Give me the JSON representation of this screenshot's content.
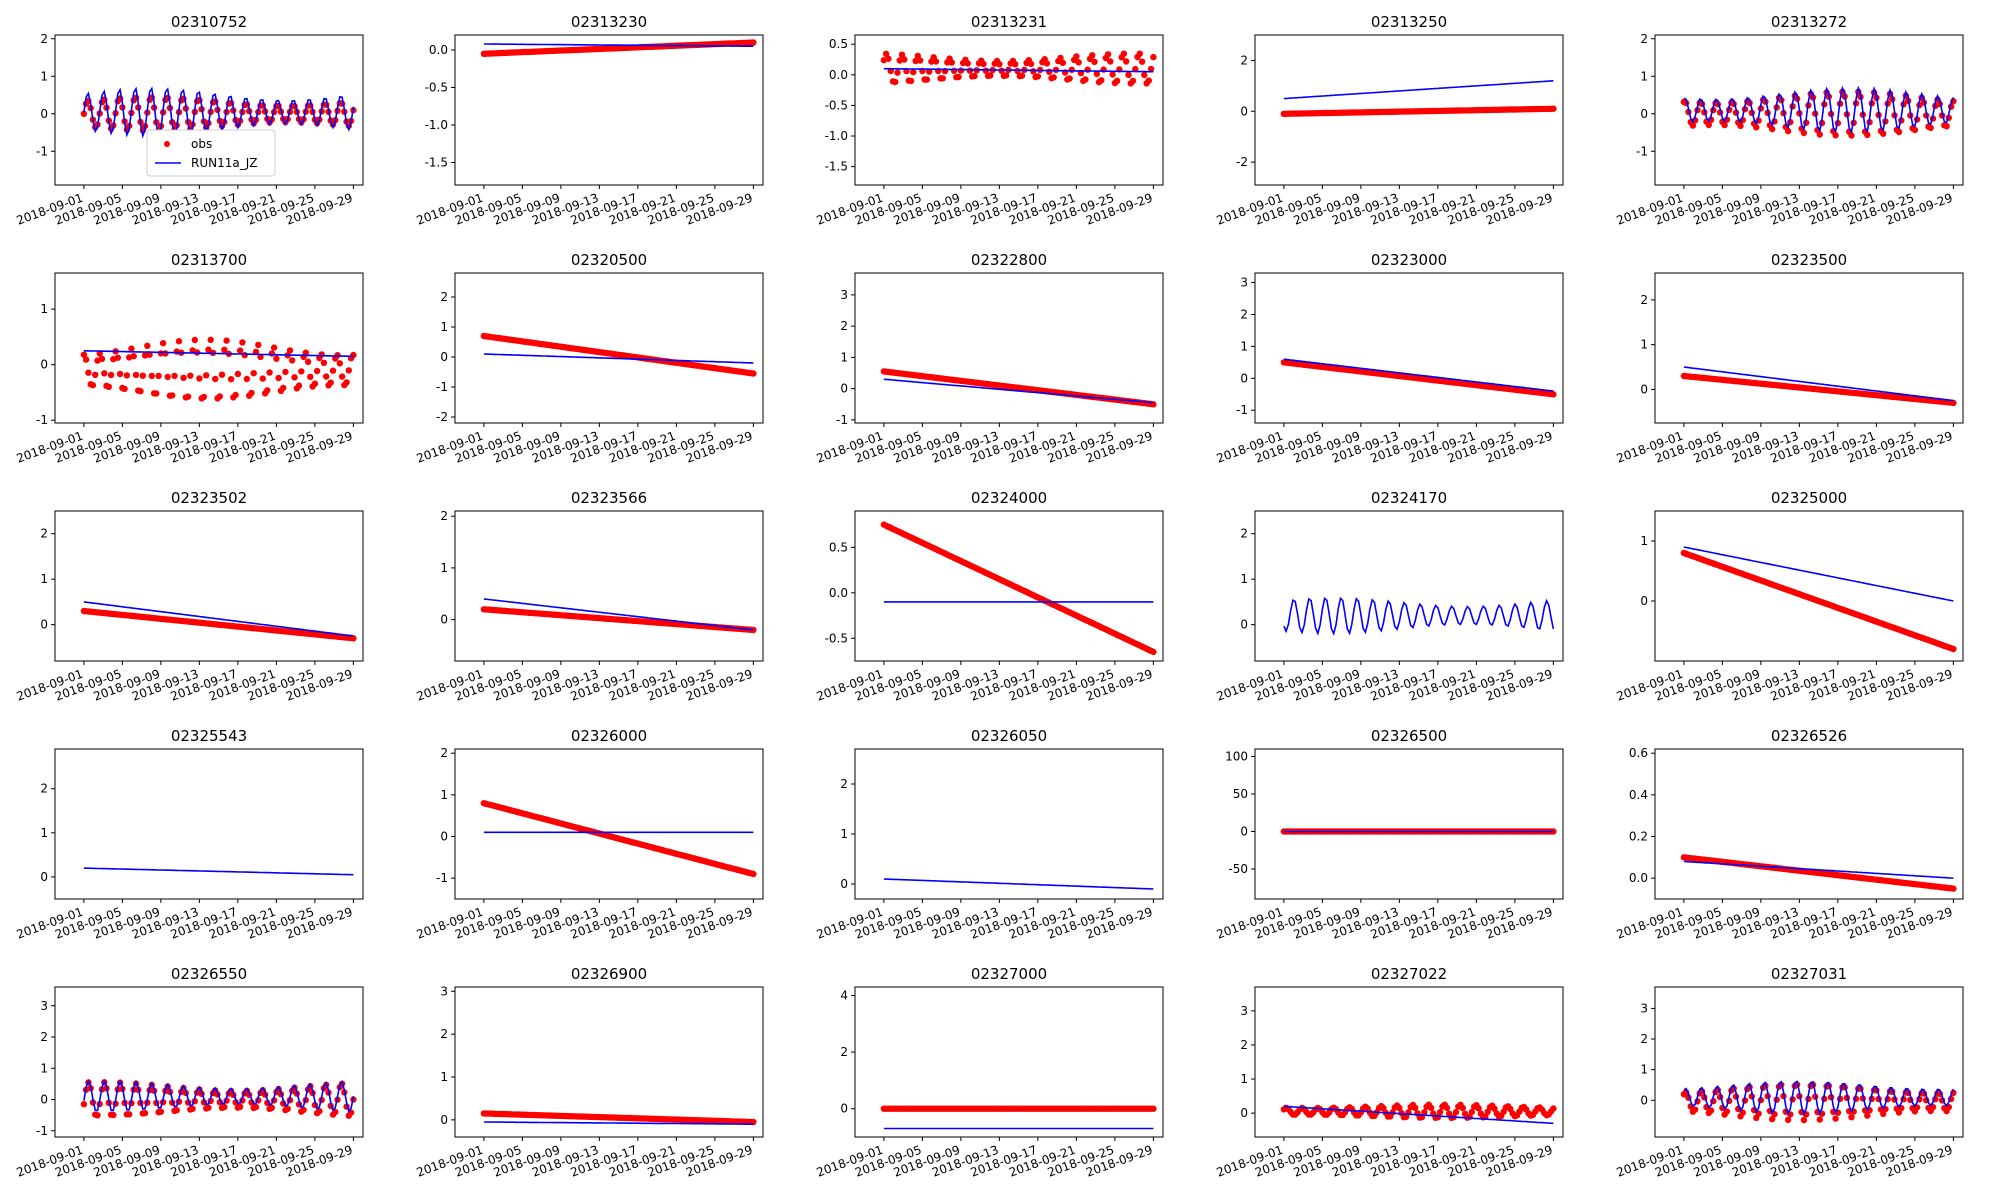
{
  "colors": {
    "obs": "#ff0000",
    "model": "#0000ff",
    "axis": "#000000"
  },
  "legend": {
    "obs_label": "obs",
    "model_label": "RUN11a_JZ"
  },
  "chart_data": [
    {
      "type": "line",
      "title": "02310752",
      "x": [
        "2018-09-01",
        "2018-09-05",
        "2018-09-09",
        "2018-09-13",
        "2018-09-17",
        "2018-09-21",
        "2018-09-25",
        "2018-09-29"
      ],
      "xlim": [
        "2018-08-29",
        "2018-09-30"
      ],
      "ylim": [
        -1.9,
        2.1
      ],
      "yticks": [
        -1,
        0,
        1,
        2
      ],
      "series": [
        {
          "name": "obs",
          "style": "oscillating",
          "base": 0.0,
          "amp": 0.45
        },
        {
          "name": "RUN11a_JZ",
          "style": "oscillating",
          "base": 0.05,
          "amp": 0.65
        }
      ],
      "legend": "lower-left"
    },
    {
      "type": "line",
      "title": "02313230",
      "x": [
        "2018-09-01",
        "2018-09-05",
        "2018-09-09",
        "2018-09-13",
        "2018-09-17",
        "2018-09-21",
        "2018-09-25",
        "2018-09-29"
      ],
      "xlim": [
        "2018-08-29",
        "2018-09-30"
      ],
      "ylim": [
        -1.8,
        0.2
      ],
      "yticks": [
        -1.5,
        -1.0,
        -0.5,
        0.0
      ],
      "series": [
        {
          "name": "obs",
          "style": "trend",
          "start": -0.05,
          "end": 0.1
        },
        {
          "name": "RUN11a_JZ",
          "style": "trend",
          "start": 0.08,
          "end": 0.05
        }
      ]
    },
    {
      "type": "line",
      "title": "02313231",
      "x": [
        "2018-09-01",
        "2018-09-05",
        "2018-09-09",
        "2018-09-13",
        "2018-09-17",
        "2018-09-21",
        "2018-09-25",
        "2018-09-29"
      ],
      "xlim": [
        "2018-08-29",
        "2018-09-30"
      ],
      "ylim": [
        -1.8,
        0.65
      ],
      "yticks": [
        -1.5,
        -1.0,
        -0.5,
        0.0,
        0.5
      ],
      "series": [
        {
          "name": "obs",
          "style": "oscillating",
          "base": 0.1,
          "amp": 0.25
        },
        {
          "name": "RUN11a_JZ",
          "style": "trend",
          "start": 0.1,
          "end": 0.05
        }
      ]
    },
    {
      "type": "line",
      "title": "02313250",
      "x": [
        "2018-09-01",
        "2018-09-05",
        "2018-09-09",
        "2018-09-13",
        "2018-09-17",
        "2018-09-21",
        "2018-09-25",
        "2018-09-29"
      ],
      "xlim": [
        "2018-08-29",
        "2018-09-30"
      ],
      "ylim": [
        -2.9,
        3.0
      ],
      "yticks": [
        -2,
        0,
        2
      ],
      "series": [
        {
          "name": "obs",
          "style": "trend",
          "start": -0.1,
          "end": 0.1
        },
        {
          "name": "RUN11a_JZ",
          "style": "trend",
          "start": 0.5,
          "end": 1.2
        }
      ]
    },
    {
      "type": "line",
      "title": "02313272",
      "x": [
        "2018-09-01",
        "2018-09-05",
        "2018-09-09",
        "2018-09-13",
        "2018-09-17",
        "2018-09-21",
        "2018-09-25",
        "2018-09-29"
      ],
      "xlim": [
        "2018-08-29",
        "2018-09-30"
      ],
      "ylim": [
        -1.9,
        2.1
      ],
      "yticks": [
        -1,
        0,
        1,
        2
      ],
      "series": [
        {
          "name": "obs",
          "style": "oscillating",
          "base": 0.0,
          "amp": 0.6
        },
        {
          "name": "RUN11a_JZ",
          "style": "oscillating",
          "base": 0.1,
          "amp": 0.6
        }
      ]
    },
    {
      "type": "line",
      "title": "02313700",
      "x": [
        "2018-09-01",
        "2018-09-05",
        "2018-09-09",
        "2018-09-13",
        "2018-09-17",
        "2018-09-21",
        "2018-09-25",
        "2018-09-29"
      ],
      "xlim": [
        "2018-08-29",
        "2018-09-30"
      ],
      "ylim": [
        -1.05,
        1.65
      ],
      "yticks": [
        -1,
        0,
        1
      ],
      "series": [
        {
          "name": "obs",
          "style": "oscillating",
          "base": -0.1,
          "amp": 0.55
        },
        {
          "name": "RUN11a_JZ",
          "style": "trend",
          "start": 0.25,
          "end": 0.15
        }
      ]
    },
    {
      "type": "line",
      "title": "02320500",
      "x": [
        "2018-09-01",
        "2018-09-05",
        "2018-09-09",
        "2018-09-13",
        "2018-09-17",
        "2018-09-21",
        "2018-09-25",
        "2018-09-29"
      ],
      "xlim": [
        "2018-08-29",
        "2018-09-30"
      ],
      "ylim": [
        -2.2,
        2.8
      ],
      "yticks": [
        -2,
        -1,
        0,
        1,
        2
      ],
      "series": [
        {
          "name": "obs",
          "style": "trend",
          "start": 0.7,
          "end": -0.55
        },
        {
          "name": "RUN11a_JZ",
          "style": "trend",
          "start": 0.1,
          "end": -0.2
        }
      ]
    },
    {
      "type": "line",
      "title": "02322800",
      "x": [
        "2018-09-01",
        "2018-09-05",
        "2018-09-09",
        "2018-09-13",
        "2018-09-17",
        "2018-09-21",
        "2018-09-25",
        "2018-09-29"
      ],
      "xlim": [
        "2018-08-29",
        "2018-09-30"
      ],
      "ylim": [
        -1.1,
        3.7
      ],
      "yticks": [
        -1,
        0,
        1,
        2,
        3
      ],
      "series": [
        {
          "name": "obs",
          "style": "trend",
          "start": 0.55,
          "end": -0.5
        },
        {
          "name": "RUN11a_JZ",
          "style": "trend",
          "start": 0.3,
          "end": -0.45
        }
      ]
    },
    {
      "type": "line",
      "title": "02323000",
      "x": [
        "2018-09-01",
        "2018-09-05",
        "2018-09-09",
        "2018-09-13",
        "2018-09-17",
        "2018-09-21",
        "2018-09-25",
        "2018-09-29"
      ],
      "xlim": [
        "2018-08-29",
        "2018-09-30"
      ],
      "ylim": [
        -1.4,
        3.3
      ],
      "yticks": [
        -1,
        0,
        1,
        2,
        3
      ],
      "series": [
        {
          "name": "obs",
          "style": "trend",
          "start": 0.5,
          "end": -0.5
        },
        {
          "name": "RUN11a_JZ",
          "style": "trend",
          "start": 0.6,
          "end": -0.4
        }
      ]
    },
    {
      "type": "line",
      "title": "02323500",
      "x": [
        "2018-09-01",
        "2018-09-05",
        "2018-09-09",
        "2018-09-13",
        "2018-09-17",
        "2018-09-21",
        "2018-09-25",
        "2018-09-29"
      ],
      "xlim": [
        "2018-08-29",
        "2018-09-30"
      ],
      "ylim": [
        -0.75,
        2.6
      ],
      "yticks": [
        0,
        1,
        2
      ],
      "series": [
        {
          "name": "obs",
          "style": "trend",
          "start": 0.3,
          "end": -0.3
        },
        {
          "name": "RUN11a_JZ",
          "style": "trend",
          "start": 0.5,
          "end": -0.25
        }
      ]
    },
    {
      "type": "line",
      "title": "02323502",
      "x": [
        "2018-09-01",
        "2018-09-05",
        "2018-09-09",
        "2018-09-13",
        "2018-09-17",
        "2018-09-21",
        "2018-09-25",
        "2018-09-29"
      ],
      "xlim": [
        "2018-08-29",
        "2018-09-30"
      ],
      "ylim": [
        -0.8,
        2.5
      ],
      "yticks": [
        0,
        1,
        2
      ],
      "series": [
        {
          "name": "obs",
          "style": "trend",
          "start": 0.3,
          "end": -0.3
        },
        {
          "name": "RUN11a_JZ",
          "style": "trend",
          "start": 0.5,
          "end": -0.25
        }
      ]
    },
    {
      "type": "line",
      "title": "02323566",
      "x": [
        "2018-09-01",
        "2018-09-05",
        "2018-09-09",
        "2018-09-13",
        "2018-09-17",
        "2018-09-21",
        "2018-09-25",
        "2018-09-29"
      ],
      "xlim": [
        "2018-08-29",
        "2018-09-30"
      ],
      "ylim": [
        -0.8,
        2.1
      ],
      "yticks": [
        0,
        1,
        2
      ],
      "series": [
        {
          "name": "obs",
          "style": "trend",
          "start": 0.2,
          "end": -0.2
        },
        {
          "name": "RUN11a_JZ",
          "style": "trend",
          "start": 0.4,
          "end": -0.2
        }
      ]
    },
    {
      "type": "line",
      "title": "02324000",
      "x": [
        "2018-09-01",
        "2018-09-05",
        "2018-09-09",
        "2018-09-13",
        "2018-09-17",
        "2018-09-21",
        "2018-09-25",
        "2018-09-29"
      ],
      "xlim": [
        "2018-08-29",
        "2018-09-30"
      ],
      "ylim": [
        -0.75,
        0.9
      ],
      "yticks": [
        -0.5,
        0.0,
        0.5
      ],
      "series": [
        {
          "name": "obs",
          "style": "trend",
          "start": 0.75,
          "end": -0.65
        },
        {
          "name": "RUN11a_JZ",
          "style": "trend",
          "start": -0.1,
          "end": -0.1
        }
      ]
    },
    {
      "type": "line",
      "title": "02324170",
      "x": [
        "2018-09-01",
        "2018-09-05",
        "2018-09-09",
        "2018-09-13",
        "2018-09-17",
        "2018-09-21",
        "2018-09-25",
        "2018-09-29"
      ],
      "xlim": [
        "2018-08-29",
        "2018-09-30"
      ],
      "ylim": [
        -0.8,
        2.5
      ],
      "yticks": [
        0,
        1,
        2
      ],
      "series": [
        {
          "name": "RUN11a_JZ",
          "style": "oscillating",
          "base": 0.2,
          "amp": 0.4
        }
      ]
    },
    {
      "type": "line",
      "title": "02325000",
      "x": [
        "2018-09-01",
        "2018-09-05",
        "2018-09-09",
        "2018-09-13",
        "2018-09-17",
        "2018-09-21",
        "2018-09-25",
        "2018-09-29"
      ],
      "xlim": [
        "2018-08-29",
        "2018-09-30"
      ],
      "ylim": [
        -1.0,
        1.5
      ],
      "yticks": [
        0,
        1
      ],
      "series": [
        {
          "name": "obs",
          "style": "trend",
          "start": 0.8,
          "end": -0.8
        },
        {
          "name": "RUN11a_JZ",
          "style": "trend",
          "start": 0.9,
          "end": 0.0
        }
      ]
    },
    {
      "type": "line",
      "title": "02325543",
      "x": [
        "2018-09-01",
        "2018-09-05",
        "2018-09-09",
        "2018-09-13",
        "2018-09-17",
        "2018-09-21",
        "2018-09-25",
        "2018-09-29"
      ],
      "xlim": [
        "2018-08-29",
        "2018-09-30"
      ],
      "ylim": [
        -0.5,
        2.9
      ],
      "yticks": [
        0,
        1,
        2
      ],
      "series": [
        {
          "name": "RUN11a_JZ",
          "style": "trend",
          "start": 0.2,
          "end": 0.05
        }
      ]
    },
    {
      "type": "line",
      "title": "02326000",
      "x": [
        "2018-09-01",
        "2018-09-05",
        "2018-09-09",
        "2018-09-13",
        "2018-09-17",
        "2018-09-21",
        "2018-09-25",
        "2018-09-29"
      ],
      "xlim": [
        "2018-08-29",
        "2018-09-30"
      ],
      "ylim": [
        -1.5,
        2.1
      ],
      "yticks": [
        -1,
        0,
        1,
        2
      ],
      "series": [
        {
          "name": "obs",
          "style": "trend",
          "start": 0.8,
          "end": -0.9
        },
        {
          "name": "RUN11a_JZ",
          "style": "trend",
          "start": 0.1,
          "end": 0.1
        }
      ]
    },
    {
      "type": "line",
      "title": "02326050",
      "x": [
        "2018-09-01",
        "2018-09-05",
        "2018-09-09",
        "2018-09-13",
        "2018-09-17",
        "2018-09-21",
        "2018-09-25",
        "2018-09-29"
      ],
      "xlim": [
        "2018-08-29",
        "2018-09-30"
      ],
      "ylim": [
        -0.3,
        2.7
      ],
      "yticks": [
        0,
        1,
        2
      ],
      "series": [
        {
          "name": "RUN11a_JZ",
          "style": "trend",
          "start": 0.1,
          "end": -0.1
        }
      ]
    },
    {
      "type": "line",
      "title": "02326500",
      "x": [
        "2018-09-01",
        "2018-09-05",
        "2018-09-09",
        "2018-09-13",
        "2018-09-17",
        "2018-09-21",
        "2018-09-25",
        "2018-09-29"
      ],
      "xlim": [
        "2018-08-29",
        "2018-09-30"
      ],
      "ylim": [
        -90,
        110
      ],
      "yticks": [
        -50,
        0,
        50,
        100
      ],
      "series": [
        {
          "name": "obs",
          "style": "trend",
          "start": 0,
          "end": 0
        },
        {
          "name": "RUN11a_JZ",
          "style": "trend",
          "start": 0,
          "end": 0
        }
      ]
    },
    {
      "type": "line",
      "title": "02326526",
      "x": [
        "2018-09-01",
        "2018-09-05",
        "2018-09-09",
        "2018-09-13",
        "2018-09-17",
        "2018-09-21",
        "2018-09-25",
        "2018-09-29"
      ],
      "xlim": [
        "2018-08-29",
        "2018-09-30"
      ],
      "ylim": [
        -0.1,
        0.62
      ],
      "yticks": [
        0.0,
        0.2,
        0.4,
        0.6
      ],
      "series": [
        {
          "name": "obs",
          "style": "trend",
          "start": 0.1,
          "end": -0.05
        },
        {
          "name": "RUN11a_JZ",
          "style": "trend",
          "start": 0.08,
          "end": 0.0
        }
      ]
    },
    {
      "type": "line",
      "title": "02326550",
      "x": [
        "2018-09-01",
        "2018-09-05",
        "2018-09-09",
        "2018-09-13",
        "2018-09-17",
        "2018-09-21",
        "2018-09-25",
        "2018-09-29"
      ],
      "xlim": [
        "2018-08-29",
        "2018-09-30"
      ],
      "ylim": [
        -1.2,
        3.6
      ],
      "yticks": [
        -1,
        0,
        1,
        2,
        3
      ],
      "series": [
        {
          "name": "obs",
          "style": "oscillating",
          "base": 0.0,
          "amp": 0.55
        },
        {
          "name": "RUN11a_JZ",
          "style": "oscillating",
          "base": 0.1,
          "amp": 0.5
        }
      ]
    },
    {
      "type": "line",
      "title": "02326900",
      "x": [
        "2018-09-01",
        "2018-09-05",
        "2018-09-09",
        "2018-09-13",
        "2018-09-17",
        "2018-09-21",
        "2018-09-25",
        "2018-09-29"
      ],
      "xlim": [
        "2018-08-29",
        "2018-09-30"
      ],
      "ylim": [
        -0.4,
        3.1
      ],
      "yticks": [
        0,
        1,
        2,
        3
      ],
      "series": [
        {
          "name": "obs",
          "style": "trend",
          "start": 0.15,
          "end": -0.05
        },
        {
          "name": "RUN11a_JZ",
          "style": "trend",
          "start": -0.05,
          "end": -0.1
        }
      ]
    },
    {
      "type": "line",
      "title": "02327000",
      "x": [
        "2018-09-01",
        "2018-09-05",
        "2018-09-09",
        "2018-09-13",
        "2018-09-17",
        "2018-09-21",
        "2018-09-25",
        "2018-09-29"
      ],
      "xlim": [
        "2018-08-29",
        "2018-09-30"
      ],
      "ylim": [
        -1.0,
        4.3
      ],
      "yticks": [
        0,
        2,
        4
      ],
      "series": [
        {
          "name": "obs",
          "style": "trend",
          "start": 0.0,
          "end": 0.0
        },
        {
          "name": "RUN11a_JZ",
          "style": "trend",
          "start": -0.7,
          "end": -0.7
        }
      ]
    },
    {
      "type": "line",
      "title": "02327022",
      "x": [
        "2018-09-01",
        "2018-09-05",
        "2018-09-09",
        "2018-09-13",
        "2018-09-17",
        "2018-09-21",
        "2018-09-25",
        "2018-09-29"
      ],
      "xlim": [
        "2018-08-29",
        "2018-09-30"
      ],
      "ylim": [
        -0.7,
        3.7
      ],
      "yticks": [
        0,
        1,
        2,
        3
      ],
      "series": [
        {
          "name": "obs",
          "style": "oscillating",
          "base": 0.05,
          "amp": 0.2
        },
        {
          "name": "RUN11a_JZ",
          "style": "trend",
          "start": 0.2,
          "end": -0.3
        }
      ]
    },
    {
      "type": "line",
      "title": "02327031",
      "x": [
        "2018-09-01",
        "2018-09-05",
        "2018-09-09",
        "2018-09-13",
        "2018-09-17",
        "2018-09-21",
        "2018-09-25",
        "2018-09-29"
      ],
      "xlim": [
        "2018-08-29",
        "2018-09-30"
      ],
      "ylim": [
        -1.2,
        3.7
      ],
      "yticks": [
        0,
        1,
        2,
        3
      ],
      "series": [
        {
          "name": "obs",
          "style": "oscillating",
          "base": -0.05,
          "amp": 0.6
        },
        {
          "name": "RUN11a_JZ",
          "style": "oscillating",
          "base": 0.1,
          "amp": 0.55
        }
      ]
    }
  ]
}
